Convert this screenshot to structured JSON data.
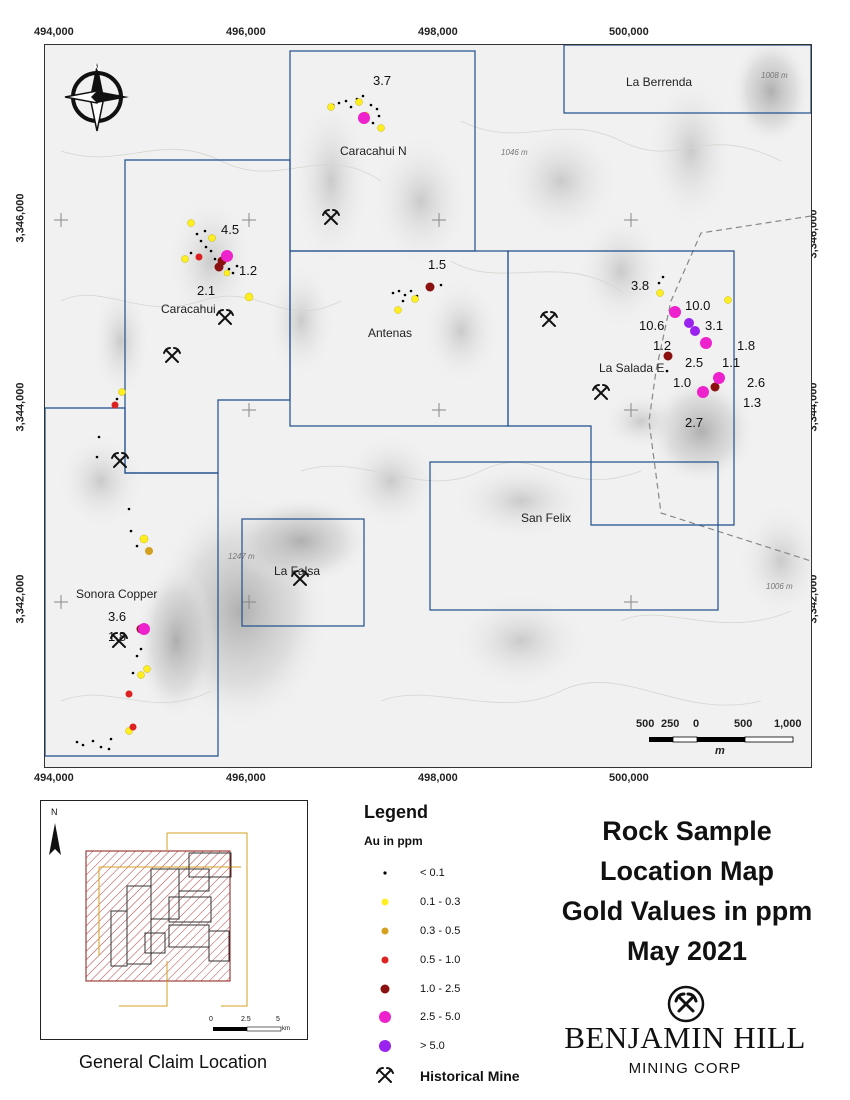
{
  "map": {
    "x_ticks_top": [
      "494,000",
      "496,000",
      "498,000",
      "500,000"
    ],
    "x_ticks_bottom": [
      "494,000",
      "496,000",
      "498,000",
      "500,000"
    ],
    "y_ticks_left": [
      "3,346,000",
      "3,344,000",
      "3,342,000"
    ],
    "y_ticks_right": [
      "3,346,000",
      "3,344,000",
      "3,342,000"
    ],
    "claims": [
      "La Berrenda",
      "Caracahui N",
      "Caracahui",
      "Antenas",
      "La Salada E",
      "San Felix",
      "La Falsa",
      "Sonora Copper"
    ],
    "elevations": [
      "1008 m",
      "1046 m",
      "1247 m",
      "1006 m"
    ],
    "sample_values": [
      "3.7",
      "4.5",
      "1.2",
      "2.1",
      "1.5",
      "3.8",
      "10.0",
      "10.6",
      "3.1",
      "1.2",
      "1.8",
      "2.5",
      "1.1",
      "1.0",
      "2.6",
      "1.3",
      "2.7",
      "3.6",
      "1.8"
    ],
    "scale_bar": {
      "labels": [
        "500",
        "250",
        "0",
        "500",
        "1,000"
      ],
      "unit": "m"
    }
  },
  "legend": {
    "title": "Legend",
    "subtitle": "Au in ppm",
    "items": [
      {
        "label": "< 0.1",
        "color": "#000000",
        "kind": "dot"
      },
      {
        "label": "0.1 - 0.3",
        "color": "#ffee22",
        "kind": "circle"
      },
      {
        "label": "0.3 - 0.5",
        "color": "#d4a020",
        "kind": "circle"
      },
      {
        "label": "0.5 - 1.0",
        "color": "#dd2222",
        "kind": "circle"
      },
      {
        "label": "1.0 - 2.5",
        "color": "#8b1010",
        "kind": "circle"
      },
      {
        "label": "2.5 - 5.0",
        "color": "#ee22cc",
        "kind": "circle"
      },
      {
        "label": "> 5.0",
        "color": "#9922ee",
        "kind": "circle"
      }
    ],
    "mine_label": "Historical Mine"
  },
  "title": {
    "lines": [
      "Rock Sample",
      "Location Map",
      "Gold Values in ppm",
      "May 2021"
    ]
  },
  "inset": {
    "caption": "General Claim Location",
    "north": "N",
    "scale_labels": [
      "0",
      "2.5",
      "5"
    ],
    "scale_unit": "km"
  },
  "brand": {
    "name": "BENJAMIN HILL",
    "sub": "MINING CORP"
  }
}
